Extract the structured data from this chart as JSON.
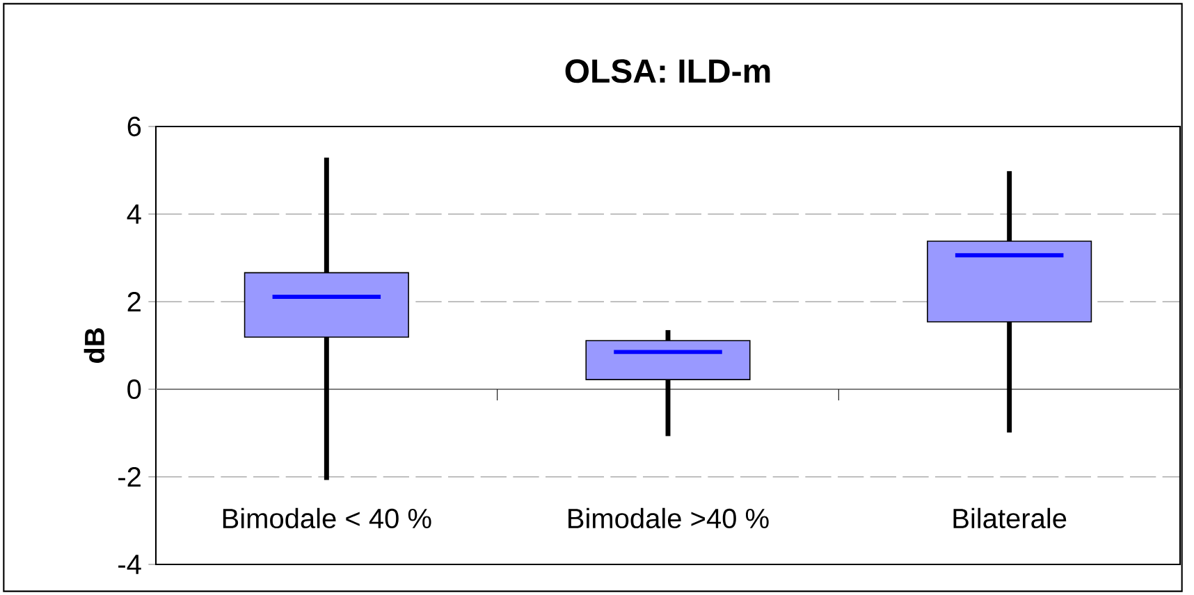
{
  "chart_data": {
    "type": "box",
    "title": "OLSA: ILD-m",
    "ylabel": "dB",
    "categories": [
      "Bimodale < 40 %",
      "Bimodale >40 %",
      "Bilaterale"
    ],
    "boxes": [
      {
        "low": -2.07,
        "q1": 1.19,
        "median": 2.11,
        "q3": 2.66,
        "high": 5.29
      },
      {
        "low": -1.07,
        "q1": 0.22,
        "median": 0.85,
        "q3": 1.11,
        "high": 1.35
      },
      {
        "low": -0.99,
        "q1": 1.54,
        "median": 3.06,
        "q3": 3.38,
        "high": 4.98
      }
    ],
    "color": "#9999ff",
    "ylim": [
      -4,
      6
    ],
    "yticks": [
      -4,
      -2,
      0,
      2,
      4,
      6
    ],
    "grid": "y"
  }
}
